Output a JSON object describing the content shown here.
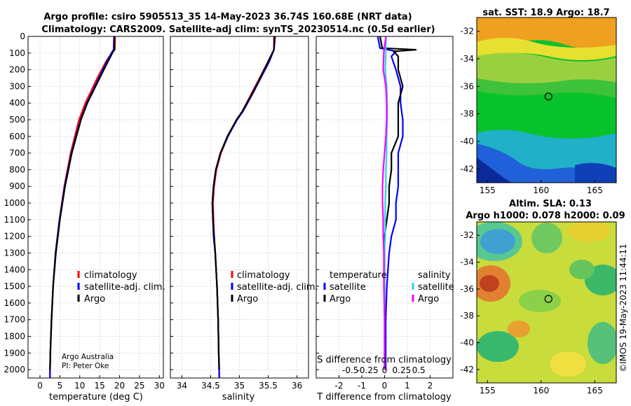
{
  "header": {
    "line1": "Argo profile: csiro 5905513_35 14-May-2023 36.74S 160.68E (NRT data)",
    "line2": "Climatology: CARS2009. Satellite-adj clim: synTS_20230514.nc (0.5d earlier)"
  },
  "credit": {
    "line1": "Argo Australia",
    "line2": "PI: Peter Oke"
  },
  "stamp": "©IMOS 19-May-2023 11:44:11",
  "colors": {
    "climatology": "#ff0000",
    "satellite": "#0000ff",
    "argo": "#000000",
    "sal_satellite": "#22d8e8",
    "sal_argo": "#ff00ff"
  },
  "chart_data": [
    {
      "type": "line",
      "title": "",
      "xlabel": "temperature (deg C)",
      "ylabel": "",
      "xlim": [
        -3,
        31
      ],
      "ylim": [
        2050,
        0
      ],
      "xticks": [
        0,
        5,
        10,
        15,
        20,
        25,
        30
      ],
      "yticks": [
        0,
        100,
        200,
        300,
        400,
        500,
        600,
        700,
        800,
        900,
        1000,
        1100,
        1200,
        1300,
        1400,
        1500,
        1600,
        1700,
        1800,
        1900,
        2000
      ],
      "legend": [
        "climatology",
        "satellite-adj. clim.",
        "Argo"
      ],
      "series": [
        {
          "name": "climatology",
          "depth": [
            0,
            80,
            90,
            150,
            250,
            400,
            500,
            700,
            900,
            1100,
            1300,
            1500,
            1700,
            1900,
            2050
          ],
          "values": [
            18.9,
            18.8,
            18.3,
            16.6,
            14.4,
            11.4,
            9.8,
            7.7,
            6.1,
            4.9,
            3.9,
            3.3,
            2.9,
            2.6,
            2.5
          ]
        },
        {
          "name": "satellite-adj. clim.",
          "depth": [
            0,
            80,
            90,
            150,
            250,
            400,
            500,
            700,
            900,
            1100,
            1300,
            1500,
            1700,
            1900,
            2050
          ],
          "values": [
            18.6,
            18.5,
            18.2,
            16.8,
            14.8,
            11.8,
            10.2,
            7.9,
            6.2,
            4.9,
            3.9,
            3.3,
            2.9,
            2.6,
            2.5
          ]
        },
        {
          "name": "Argo",
          "depth": [
            0,
            80,
            90,
            150,
            250,
            400,
            500,
            700,
            900,
            1100,
            1300,
            1500,
            1700,
            1900,
            2000
          ],
          "values": [
            18.7,
            18.7,
            18.4,
            17.1,
            15.0,
            11.9,
            10.3,
            8.0,
            6.3,
            5.0,
            4.0,
            3.3,
            2.9,
            2.6,
            2.5
          ]
        }
      ]
    },
    {
      "type": "line",
      "title": "",
      "xlabel": "salinity",
      "ylabel": "",
      "xlim": [
        33.8,
        36.2
      ],
      "ylim": [
        2050,
        0
      ],
      "xticks": [
        34,
        34.5,
        35,
        35.5,
        36
      ],
      "xticklabels": [
        "34",
        "34.5",
        "35",
        "35.5",
        "36"
      ],
      "legend": [
        "climatology",
        "satellite-adj. clim.",
        "Argo"
      ],
      "series": [
        {
          "name": "climatology",
          "depth": [
            0,
            80,
            150,
            250,
            350,
            450,
            500,
            600,
            700,
            800,
            900,
            1000,
            1100,
            1200,
            1300,
            1500,
            1700,
            1900,
            2050
          ],
          "values": [
            35.6,
            35.6,
            35.5,
            35.35,
            35.2,
            35.05,
            34.95,
            34.8,
            34.68,
            34.6,
            34.56,
            34.54,
            34.55,
            34.56,
            34.58,
            34.61,
            34.63,
            34.64,
            34.65
          ]
        },
        {
          "name": "satellite-adj. clim.",
          "depth": [
            0,
            80,
            150,
            250,
            350,
            450,
            500,
            600,
            700,
            800,
            900,
            1000,
            1100,
            1200,
            1300,
            1500,
            1700,
            1900,
            2050
          ],
          "values": [
            35.62,
            35.6,
            35.52,
            35.37,
            35.22,
            35.06,
            34.96,
            34.8,
            34.67,
            34.59,
            34.55,
            34.53,
            34.54,
            34.55,
            34.58,
            34.61,
            34.63,
            34.64,
            34.65
          ]
        },
        {
          "name": "Argo",
          "depth": [
            0,
            80,
            150,
            250,
            350,
            450,
            500,
            600,
            700,
            800,
            900,
            1000,
            1100,
            1200,
            1300,
            1500,
            1700,
            1900,
            2000
          ],
          "values": [
            35.61,
            35.6,
            35.5,
            35.36,
            35.21,
            35.05,
            34.95,
            34.79,
            34.67,
            34.59,
            34.55,
            34.53,
            34.54,
            34.56,
            34.58,
            34.61,
            34.63,
            34.64,
            34.65
          ]
        }
      ]
    },
    {
      "type": "line",
      "title": "",
      "xlabel": "T difference from climatology",
      "ylabel": "",
      "xlim": [
        -3,
        3
      ],
      "ylim": [
        2050,
        0
      ],
      "xticks": [
        -2,
        -1,
        0,
        1,
        2
      ],
      "s_axis_label": "S difference from climatology",
      "s_ticks": [
        -0.5,
        -0.25,
        0,
        0.25,
        0.5
      ],
      "s_ticklabels": [
        "-0.5",
        "-0.25",
        "0",
        "0.25",
        "0.5"
      ],
      "legend_headers": [
        "temperature",
        "salinity"
      ],
      "legend": [
        "satellite",
        "Argo",
        "satellite",
        "Argo"
      ],
      "series": [
        {
          "name": "T satellite",
          "depth": [
            0,
            70,
            90,
            120,
            200,
            300,
            400,
            500,
            600,
            700,
            800,
            900,
            1000,
            1100,
            1200,
            1300,
            1500,
            1700,
            1900,
            2000
          ],
          "values": [
            -0.3,
            -0.2,
            0.5,
            0.3,
            0.5,
            0.7,
            0.7,
            0.8,
            0.8,
            0.6,
            0.6,
            0.6,
            0.5,
            0.5,
            0.3,
            0.2,
            0.1,
            0.05,
            0.05,
            0.05
          ]
        },
        {
          "name": "T Argo",
          "depth": [
            0,
            70,
            80,
            90,
            120,
            200,
            300,
            400,
            500,
            600,
            700,
            800,
            900,
            1000,
            1100,
            1200,
            1300,
            1500,
            1700,
            1900,
            2000
          ],
          "values": [
            -0.2,
            -0.1,
            1.4,
            0.4,
            0.6,
            0.6,
            0.8,
            0.6,
            0.6,
            0.6,
            0.3,
            0.3,
            0.2,
            0.2,
            0.1,
            0.0,
            0.0,
            0.0,
            0.0,
            0.0,
            0.0
          ]
        },
        {
          "name": "S satellite",
          "depth": [
            0,
            90,
            200,
            300,
            400,
            500,
            600,
            700,
            800,
            900,
            1000,
            1100,
            1200,
            1300,
            1500,
            1700,
            1900,
            2000
          ],
          "values": [
            0.02,
            0.02,
            0.01,
            0.03,
            0.04,
            0.04,
            0.03,
            0.03,
            0.02,
            0.02,
            0.01,
            0.01,
            0.01,
            0.0,
            0.0,
            0.0,
            0.0,
            0.0
          ]
        },
        {
          "name": "S Argo",
          "depth": [
            0,
            90,
            200,
            300,
            400,
            500,
            600,
            700,
            800,
            900,
            1000,
            1100,
            1200,
            1300,
            1500,
            1700,
            1900,
            2000
          ],
          "values": [
            0.02,
            -0.01,
            -0.02,
            0.02,
            0.03,
            0.03,
            0.02,
            0.0,
            -0.02,
            -0.03,
            -0.03,
            -0.02,
            -0.02,
            -0.01,
            -0.01,
            0.0,
            0.0,
            0.0
          ]
        }
      ]
    },
    {
      "type": "heatmap",
      "title": "sat. SST: 18.9 Argo: 18.7",
      "xlim": [
        154,
        167
      ],
      "ylim": [
        -43,
        -31
      ],
      "xticks": [
        155,
        160,
        165
      ],
      "yticks": [
        -32,
        -34,
        -36,
        -38,
        -40,
        -42
      ],
      "marker": {
        "lon": 160.68,
        "lat": -36.74
      }
    },
    {
      "type": "heatmap",
      "title_line1": "Altim. SLA: 0.13",
      "title_line2": "Argo h1000: 0.078 h2000: 0.09",
      "xlim": [
        154,
        167
      ],
      "ylim": [
        -43,
        -31
      ],
      "xticks": [
        155,
        160,
        165
      ],
      "yticks": [
        -32,
        -34,
        -36,
        -38,
        -40,
        -42
      ],
      "marker": {
        "lon": 160.68,
        "lat": -36.74
      }
    }
  ]
}
